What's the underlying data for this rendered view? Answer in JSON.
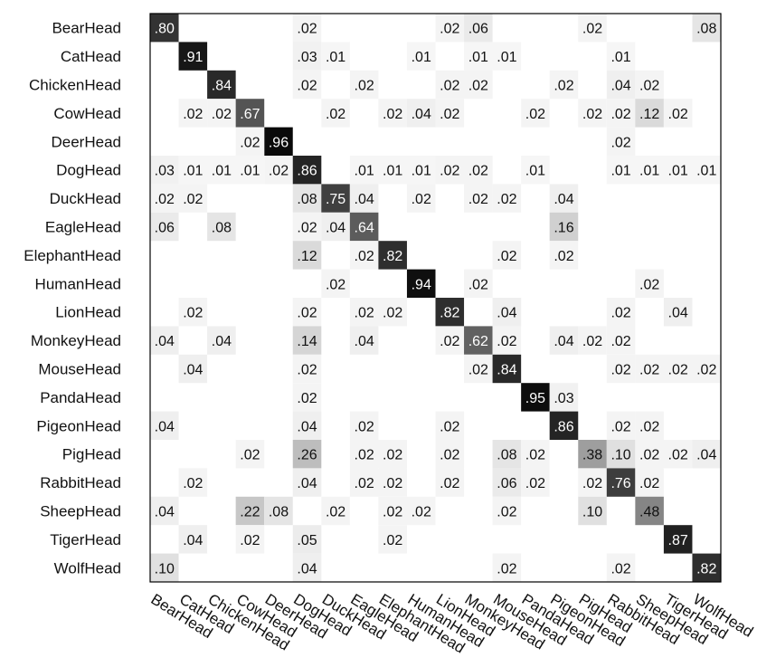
{
  "chart_data": {
    "type": "heatmap",
    "title": "",
    "xlabel": "",
    "ylabel": "",
    "value_range": [
      0,
      1
    ],
    "colormap": "white-to-black (gray scale)",
    "grid": false,
    "rows": [
      "BearHead",
      "CatHead",
      "ChickenHead",
      "CowHead",
      "DeerHead",
      "DogHead",
      "DuckHead",
      "EagleHead",
      "ElephantHead",
      "HumanHead",
      "LionHead",
      "MonkeyHead",
      "MouseHead",
      "PandaHead",
      "PigeonHead",
      "PigHead",
      "RabbitHead",
      "SheepHead",
      "TigerHead",
      "WolfHead"
    ],
    "columns": [
      "BearHead",
      "CatHead",
      "ChickenHead",
      "CowHead",
      "DeerHead",
      "DogHead",
      "DuckHead",
      "EagleHead",
      "ElephantHead",
      "HumanHead",
      "LionHead",
      "MonkeyHead",
      "MouseHead",
      "PandaHead",
      "PigeonHead",
      "PigHead",
      "RabbitHead",
      "SheepHead",
      "TigerHead",
      "WolfHead"
    ],
    "cells": [
      {
        "r": 0,
        "c": 0,
        "label": ".80",
        "value": 0.8
      },
      {
        "r": 0,
        "c": 5,
        "label": ".02",
        "value": 0.02
      },
      {
        "r": 0,
        "c": 10,
        "label": ".02",
        "value": 0.02
      },
      {
        "r": 0,
        "c": 11,
        "label": ".06",
        "value": 0.06
      },
      {
        "r": 0,
        "c": 15,
        "label": ".02",
        "value": 0.02
      },
      {
        "r": 0,
        "c": 19,
        "label": ".08",
        "value": 0.08
      },
      {
        "r": 1,
        "c": 1,
        "label": ".91",
        "value": 0.91
      },
      {
        "r": 1,
        "c": 5,
        "label": ".03",
        "value": 0.03
      },
      {
        "r": 1,
        "c": 6,
        "label": ".01",
        "value": 0.01
      },
      {
        "r": 1,
        "c": 9,
        "label": ".01",
        "value": 0.01
      },
      {
        "r": 1,
        "c": 11,
        "label": ".01",
        "value": 0.01
      },
      {
        "r": 1,
        "c": 12,
        "label": ".01",
        "value": 0.01
      },
      {
        "r": 1,
        "c": 16,
        "label": ".01",
        "value": 0.01
      },
      {
        "r": 2,
        "c": 2,
        "label": ".84",
        "value": 0.84
      },
      {
        "r": 2,
        "c": 5,
        "label": ".02",
        "value": 0.02
      },
      {
        "r": 2,
        "c": 7,
        "label": ".02",
        "value": 0.02
      },
      {
        "r": 2,
        "c": 10,
        "label": ".02",
        "value": 0.02
      },
      {
        "r": 2,
        "c": 11,
        "label": ".02",
        "value": 0.02
      },
      {
        "r": 2,
        "c": 14,
        "label": ".02",
        "value": 0.02
      },
      {
        "r": 2,
        "c": 16,
        "label": ".04",
        "value": 0.04
      },
      {
        "r": 2,
        "c": 17,
        "label": ".02",
        "value": 0.02
      },
      {
        "r": 3,
        "c": 1,
        "label": ".02",
        "value": 0.02
      },
      {
        "r": 3,
        "c": 2,
        "label": ".02",
        "value": 0.02
      },
      {
        "r": 3,
        "c": 3,
        "label": ".67",
        "value": 0.67
      },
      {
        "r": 3,
        "c": 6,
        "label": ".02",
        "value": 0.02
      },
      {
        "r": 3,
        "c": 8,
        "label": ".02",
        "value": 0.02
      },
      {
        "r": 3,
        "c": 9,
        "label": ".04",
        "value": 0.04
      },
      {
        "r": 3,
        "c": 10,
        "label": ".02",
        "value": 0.02
      },
      {
        "r": 3,
        "c": 13,
        "label": ".02",
        "value": 0.02
      },
      {
        "r": 3,
        "c": 15,
        "label": ".02",
        "value": 0.02
      },
      {
        "r": 3,
        "c": 16,
        "label": ".02",
        "value": 0.02
      },
      {
        "r": 3,
        "c": 17,
        "label": ".12",
        "value": 0.12
      },
      {
        "r": 3,
        "c": 18,
        "label": ".02",
        "value": 0.02
      },
      {
        "r": 4,
        "c": 4,
        "label": ".96",
        "value": 0.96
      },
      {
        "r": 4,
        "c": 3,
        "label": ".02",
        "value": 0.02
      },
      {
        "r": 4,
        "c": 16,
        "label": ".02",
        "value": 0.02
      },
      {
        "r": 5,
        "c": 0,
        "label": ".03",
        "value": 0.03
      },
      {
        "r": 5,
        "c": 1,
        "label": ".01",
        "value": 0.01
      },
      {
        "r": 5,
        "c": 2,
        "label": ".01",
        "value": 0.01
      },
      {
        "r": 5,
        "c": 3,
        "label": ".01",
        "value": 0.01
      },
      {
        "r": 5,
        "c": 4,
        "label": ".02",
        "value": 0.02
      },
      {
        "r": 5,
        "c": 5,
        "label": ".86",
        "value": 0.86
      },
      {
        "r": 5,
        "c": 7,
        "label": ".01",
        "value": 0.01
      },
      {
        "r": 5,
        "c": 8,
        "label": ".01",
        "value": 0.01
      },
      {
        "r": 5,
        "c": 9,
        "label": ".01",
        "value": 0.01
      },
      {
        "r": 5,
        "c": 10,
        "label": ".02",
        "value": 0.02
      },
      {
        "r": 5,
        "c": 11,
        "label": ".02",
        "value": 0.02
      },
      {
        "r": 5,
        "c": 13,
        "label": ".01",
        "value": 0.01
      },
      {
        "r": 5,
        "c": 16,
        "label": ".01",
        "value": 0.01
      },
      {
        "r": 5,
        "c": 17,
        "label": ".01",
        "value": 0.01
      },
      {
        "r": 5,
        "c": 18,
        "label": ".01",
        "value": 0.01
      },
      {
        "r": 5,
        "c": 19,
        "label": ".01",
        "value": 0.01
      },
      {
        "r": 6,
        "c": 0,
        "label": ".02",
        "value": 0.02
      },
      {
        "r": 6,
        "c": 1,
        "label": ".02",
        "value": 0.02
      },
      {
        "r": 6,
        "c": 5,
        "label": ".08",
        "value": 0.08
      },
      {
        "r": 6,
        "c": 6,
        "label": ".75",
        "value": 0.75
      },
      {
        "r": 6,
        "c": 7,
        "label": ".04",
        "value": 0.04
      },
      {
        "r": 6,
        "c": 9,
        "label": ".02",
        "value": 0.02
      },
      {
        "r": 6,
        "c": 11,
        "label": ".02",
        "value": 0.02
      },
      {
        "r": 6,
        "c": 12,
        "label": ".02",
        "value": 0.02
      },
      {
        "r": 6,
        "c": 14,
        "label": ".04",
        "value": 0.04
      },
      {
        "r": 7,
        "c": 0,
        "label": ".06",
        "value": 0.06
      },
      {
        "r": 7,
        "c": 2,
        "label": ".08",
        "value": 0.08
      },
      {
        "r": 7,
        "c": 5,
        "label": ".02",
        "value": 0.02
      },
      {
        "r": 7,
        "c": 6,
        "label": ".04",
        "value": 0.04
      },
      {
        "r": 7,
        "c": 7,
        "label": ".64",
        "value": 0.64
      },
      {
        "r": 7,
        "c": 14,
        "label": ".16",
        "value": 0.16
      },
      {
        "r": 8,
        "c": 5,
        "label": ".12",
        "value": 0.12
      },
      {
        "r": 8,
        "c": 7,
        "label": ".02",
        "value": 0.02
      },
      {
        "r": 8,
        "c": 8,
        "label": ".82",
        "value": 0.82
      },
      {
        "r": 8,
        "c": 12,
        "label": ".02",
        "value": 0.02
      },
      {
        "r": 8,
        "c": 14,
        "label": ".02",
        "value": 0.02
      },
      {
        "r": 9,
        "c": 6,
        "label": ".02",
        "value": 0.02
      },
      {
        "r": 9,
        "c": 9,
        "label": ".94",
        "value": 0.94
      },
      {
        "r": 9,
        "c": 11,
        "label": ".02",
        "value": 0.02
      },
      {
        "r": 9,
        "c": 17,
        "label": ".02",
        "value": 0.02
      },
      {
        "r": 10,
        "c": 1,
        "label": ".02",
        "value": 0.02
      },
      {
        "r": 10,
        "c": 5,
        "label": ".02",
        "value": 0.02
      },
      {
        "r": 10,
        "c": 7,
        "label": ".02",
        "value": 0.02
      },
      {
        "r": 10,
        "c": 8,
        "label": ".02",
        "value": 0.02
      },
      {
        "r": 10,
        "c": 10,
        "label": ".82",
        "value": 0.82
      },
      {
        "r": 10,
        "c": 12,
        "label": ".04",
        "value": 0.04
      },
      {
        "r": 10,
        "c": 16,
        "label": ".02",
        "value": 0.02
      },
      {
        "r": 10,
        "c": 18,
        "label": ".04",
        "value": 0.04
      },
      {
        "r": 11,
        "c": 0,
        "label": ".04",
        "value": 0.04
      },
      {
        "r": 11,
        "c": 2,
        "label": ".04",
        "value": 0.04
      },
      {
        "r": 11,
        "c": 5,
        "label": ".14",
        "value": 0.14
      },
      {
        "r": 11,
        "c": 7,
        "label": ".04",
        "value": 0.04
      },
      {
        "r": 11,
        "c": 10,
        "label": ".02",
        "value": 0.02
      },
      {
        "r": 11,
        "c": 11,
        "label": ".62",
        "value": 0.62
      },
      {
        "r": 11,
        "c": 12,
        "label": ".02",
        "value": 0.02
      },
      {
        "r": 11,
        "c": 14,
        "label": ".04",
        "value": 0.04
      },
      {
        "r": 11,
        "c": 15,
        "label": ".02",
        "value": 0.02
      },
      {
        "r": 11,
        "c": 16,
        "label": ".02",
        "value": 0.02
      },
      {
        "r": 12,
        "c": 1,
        "label": ".04",
        "value": 0.04
      },
      {
        "r": 12,
        "c": 5,
        "label": ".02",
        "value": 0.02
      },
      {
        "r": 12,
        "c": 11,
        "label": ".02",
        "value": 0.02
      },
      {
        "r": 12,
        "c": 12,
        "label": ".84",
        "value": 0.84
      },
      {
        "r": 12,
        "c": 16,
        "label": ".02",
        "value": 0.02
      },
      {
        "r": 12,
        "c": 17,
        "label": ".02",
        "value": 0.02
      },
      {
        "r": 12,
        "c": 18,
        "label": ".02",
        "value": 0.02
      },
      {
        "r": 12,
        "c": 19,
        "label": ".02",
        "value": 0.02
      },
      {
        "r": 13,
        "c": 5,
        "label": ".02",
        "value": 0.02
      },
      {
        "r": 13,
        "c": 13,
        "label": ".95",
        "value": 0.95
      },
      {
        "r": 13,
        "c": 14,
        "label": ".03",
        "value": 0.03
      },
      {
        "r": 14,
        "c": 0,
        "label": ".04",
        "value": 0.04
      },
      {
        "r": 14,
        "c": 5,
        "label": ".04",
        "value": 0.04
      },
      {
        "r": 14,
        "c": 7,
        "label": ".02",
        "value": 0.02
      },
      {
        "r": 14,
        "c": 10,
        "label": ".02",
        "value": 0.02
      },
      {
        "r": 14,
        "c": 14,
        "label": ".86",
        "value": 0.86
      },
      {
        "r": 14,
        "c": 16,
        "label": ".02",
        "value": 0.02
      },
      {
        "r": 14,
        "c": 17,
        "label": ".02",
        "value": 0.02
      },
      {
        "r": 15,
        "c": 3,
        "label": ".02",
        "value": 0.02
      },
      {
        "r": 15,
        "c": 5,
        "label": ".26",
        "value": 0.26
      },
      {
        "r": 15,
        "c": 7,
        "label": ".02",
        "value": 0.02
      },
      {
        "r": 15,
        "c": 8,
        "label": ".02",
        "value": 0.02
      },
      {
        "r": 15,
        "c": 10,
        "label": ".02",
        "value": 0.02
      },
      {
        "r": 15,
        "c": 12,
        "label": ".08",
        "value": 0.08
      },
      {
        "r": 15,
        "c": 13,
        "label": ".02",
        "value": 0.02
      },
      {
        "r": 15,
        "c": 15,
        "label": ".38",
        "value": 0.38
      },
      {
        "r": 15,
        "c": 16,
        "label": ".10",
        "value": 0.1
      },
      {
        "r": 15,
        "c": 17,
        "label": ".02",
        "value": 0.02
      },
      {
        "r": 15,
        "c": 18,
        "label": ".02",
        "value": 0.02
      },
      {
        "r": 15,
        "c": 19,
        "label": ".04",
        "value": 0.04
      },
      {
        "r": 16,
        "c": 1,
        "label": ".02",
        "value": 0.02
      },
      {
        "r": 16,
        "c": 5,
        "label": ".04",
        "value": 0.04
      },
      {
        "r": 16,
        "c": 7,
        "label": ".02",
        "value": 0.02
      },
      {
        "r": 16,
        "c": 8,
        "label": ".02",
        "value": 0.02
      },
      {
        "r": 16,
        "c": 10,
        "label": ".02",
        "value": 0.02
      },
      {
        "r": 16,
        "c": 12,
        "label": ".06",
        "value": 0.06
      },
      {
        "r": 16,
        "c": 13,
        "label": ".02",
        "value": 0.02
      },
      {
        "r": 16,
        "c": 15,
        "label": ".02",
        "value": 0.02
      },
      {
        "r": 16,
        "c": 16,
        "label": ".76",
        "value": 0.76
      },
      {
        "r": 16,
        "c": 17,
        "label": ".02",
        "value": 0.02
      },
      {
        "r": 17,
        "c": 0,
        "label": ".04",
        "value": 0.04
      },
      {
        "r": 17,
        "c": 3,
        "label": ".22",
        "value": 0.22
      },
      {
        "r": 17,
        "c": 4,
        "label": ".08",
        "value": 0.08
      },
      {
        "r": 17,
        "c": 6,
        "label": ".02",
        "value": 0.02
      },
      {
        "r": 17,
        "c": 8,
        "label": ".02",
        "value": 0.02
      },
      {
        "r": 17,
        "c": 9,
        "label": ".02",
        "value": 0.02
      },
      {
        "r": 17,
        "c": 12,
        "label": ".02",
        "value": 0.02
      },
      {
        "r": 17,
        "c": 15,
        "label": ".10",
        "value": 0.1
      },
      {
        "r": 17,
        "c": 17,
        "label": ".48",
        "value": 0.48
      },
      {
        "r": 18,
        "c": 1,
        "label": ".04",
        "value": 0.04
      },
      {
        "r": 18,
        "c": 3,
        "label": ".02",
        "value": 0.02
      },
      {
        "r": 18,
        "c": 5,
        "label": ".05",
        "value": 0.05
      },
      {
        "r": 18,
        "c": 8,
        "label": ".02",
        "value": 0.02
      },
      {
        "r": 18,
        "c": 18,
        "label": ".87",
        "value": 0.87
      },
      {
        "r": 19,
        "c": 0,
        "label": ".10",
        "value": 0.1
      },
      {
        "r": 19,
        "c": 5,
        "label": ".04",
        "value": 0.04
      },
      {
        "r": 19,
        "c": 12,
        "label": ".02",
        "value": 0.02
      },
      {
        "r": 19,
        "c": 16,
        "label": ".02",
        "value": 0.02
      },
      {
        "r": 19,
        "c": 19,
        "label": ".82",
        "value": 0.82
      }
    ]
  }
}
